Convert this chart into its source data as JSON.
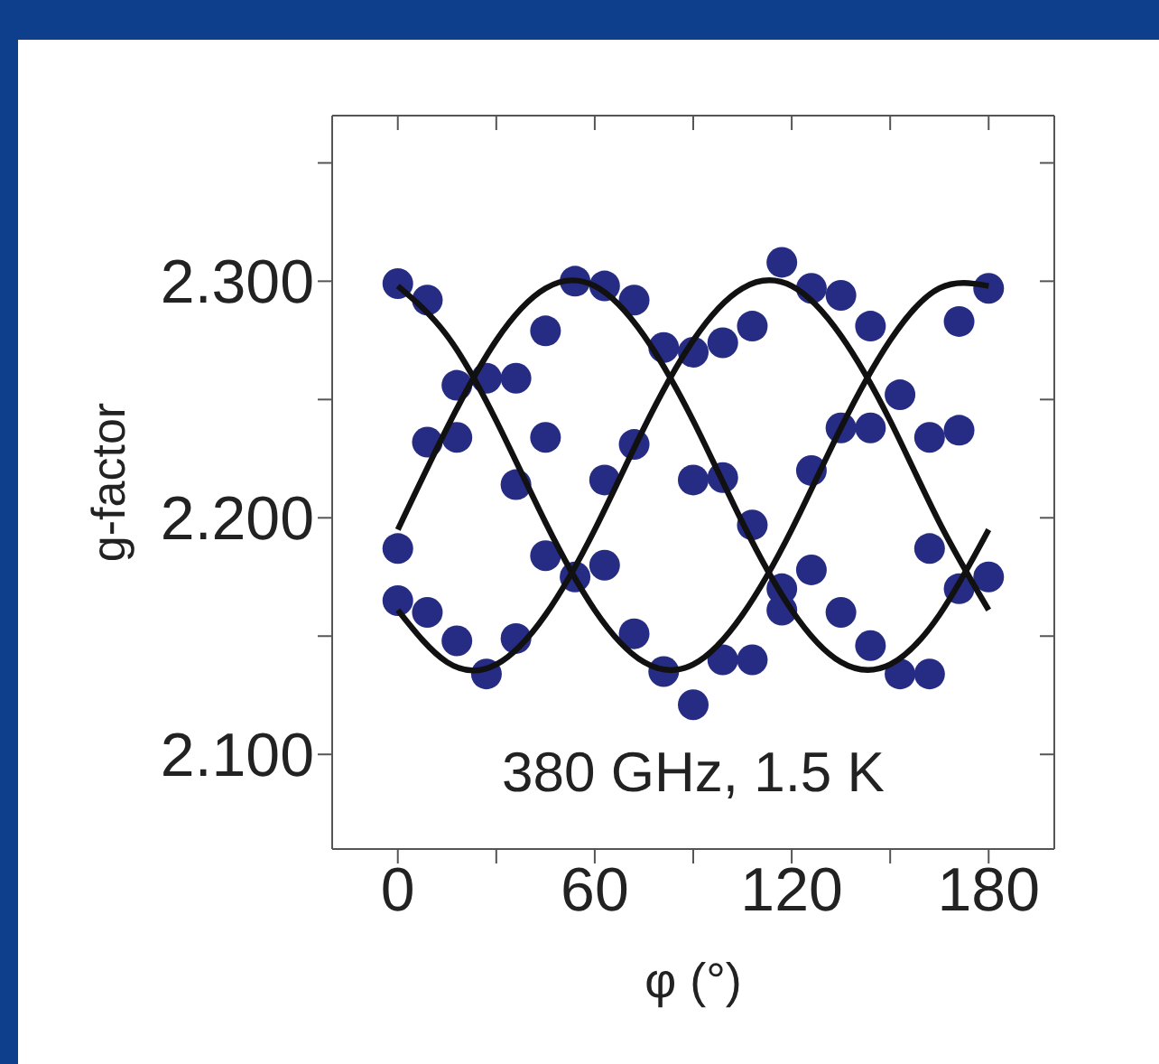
{
  "chart_data": {
    "type": "scatter",
    "xlabel": "φ (°)",
    "ylabel": "g-factor",
    "annotations": [
      "380 GHz, 1.5 K"
    ],
    "xlim": [
      -20,
      200
    ],
    "ylim": [
      2.06,
      2.37
    ],
    "xticks": [
      0,
      {
        "value": 30,
        "label": null
      },
      60,
      {
        "value": 90,
        "label": null
      },
      120,
      {
        "value": 150,
        "label": null
      },
      180
    ],
    "yticks": [
      {
        "value": 2.1,
        "label": "2.100"
      },
      {
        "value": 2.15,
        "label": null
      },
      {
        "value": 2.2,
        "label": "2.200"
      },
      {
        "value": 2.25,
        "label": null
      },
      {
        "value": 2.3,
        "label": "2.300"
      },
      {
        "value": 2.35,
        "label": null
      }
    ],
    "grid": false,
    "legend": false,
    "series": [
      {
        "color": "#262c84",
        "marker": "circle",
        "x": [
          0,
          0,
          0,
          9,
          9,
          9,
          18,
          18,
          18,
          27,
          27,
          36,
          36,
          36,
          45,
          45,
          45,
          54,
          54,
          63,
          63,
          63,
          72,
          72,
          72,
          81,
          81,
          90,
          90,
          90,
          99,
          99,
          99,
          108,
          108,
          108,
          117,
          117,
          117,
          126,
          126,
          126,
          135,
          135,
          135,
          144,
          144,
          144,
          153,
          153,
          162,
          162,
          162,
          171,
          171,
          171,
          180,
          180
        ],
        "values": [
          2.299,
          2.187,
          2.165,
          2.292,
          2.16,
          2.232,
          2.234,
          2.256,
          2.148,
          2.259,
          2.134,
          2.149,
          2.259,
          2.214,
          2.279,
          2.234,
          2.184,
          2.175,
          2.3,
          2.298,
          2.216,
          2.18,
          2.292,
          2.231,
          2.151,
          2.135,
          2.272,
          2.121,
          2.27,
          2.216,
          2.274,
          2.217,
          2.14,
          2.14,
          2.281,
          2.197,
          2.308,
          2.161,
          2.17,
          2.297,
          2.178,
          2.22,
          2.294,
          2.238,
          2.16,
          2.281,
          2.238,
          2.146,
          2.252,
          2.134,
          2.134,
          2.234,
          2.187,
          2.237,
          2.283,
          2.17,
          2.297,
          2.175
        ]
      },
      {
        "type": "line",
        "color": "#111111",
        "x": [
          0,
          15,
          30,
          45,
          60,
          75,
          90,
          105,
          120,
          135,
          150,
          165,
          180
        ],
        "values": [
          2.298,
          2.277,
          2.241,
          2.198,
          2.161,
          2.139,
          2.138,
          2.159,
          2.195,
          2.238,
          2.275,
          2.297,
          2.298
        ]
      },
      {
        "type": "line",
        "color": "#111111",
        "x": [
          0,
          15,
          30,
          45,
          60,
          75,
          90,
          105,
          120,
          135,
          150,
          165,
          180
        ],
        "values": [
          2.195,
          2.238,
          2.275,
          2.297,
          2.298,
          2.277,
          2.241,
          2.198,
          2.161,
          2.139,
          2.138,
          2.159,
          2.195
        ]
      },
      {
        "type": "line",
        "color": "#111111",
        "x": [
          0,
          15,
          30,
          45,
          60,
          75,
          90,
          105,
          120,
          135,
          150,
          165,
          180
        ],
        "values": [
          2.161,
          2.139,
          2.138,
          2.159,
          2.195,
          2.238,
          2.275,
          2.297,
          2.298,
          2.277,
          2.241,
          2.198,
          2.161
        ]
      }
    ]
  }
}
